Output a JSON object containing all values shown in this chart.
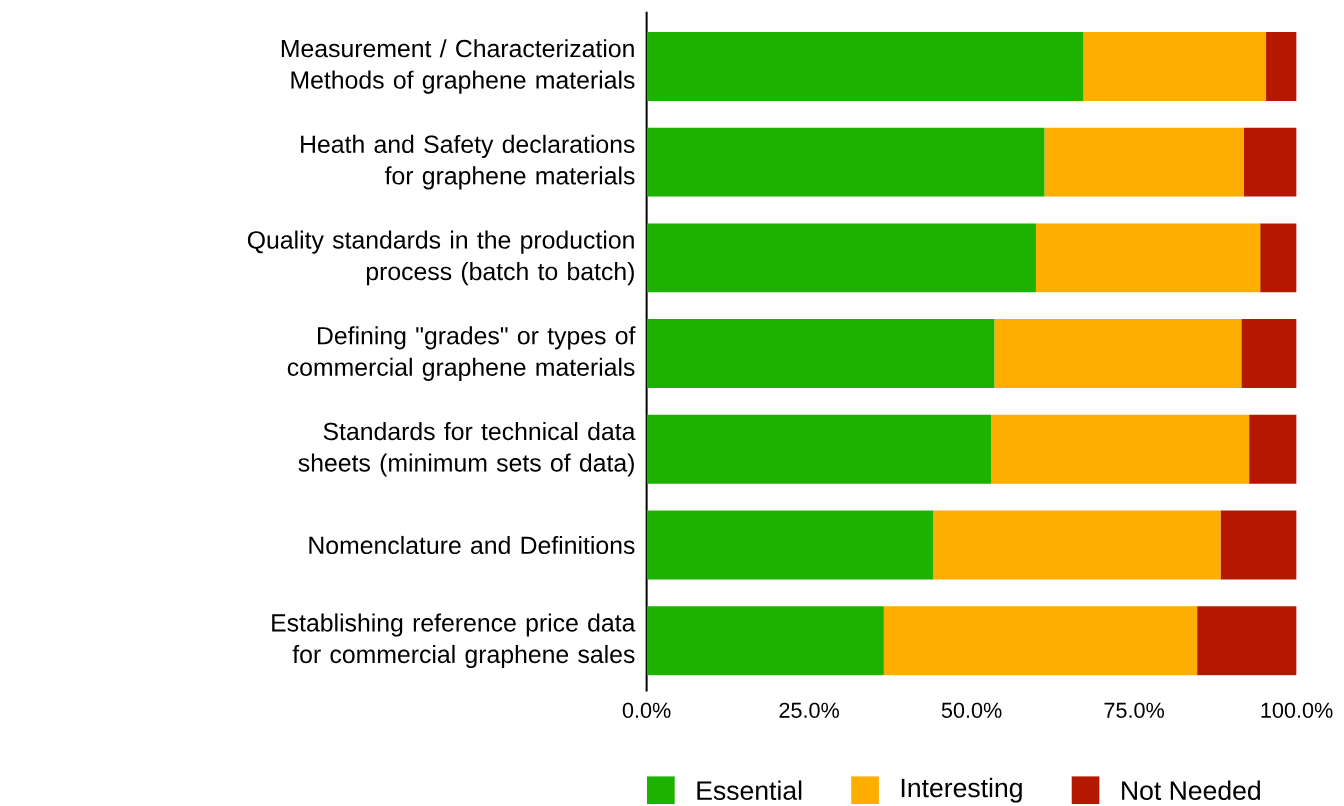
{
  "chart_data": {
    "type": "bar",
    "orientation": "horizontal",
    "stacked": true,
    "categories": [
      "Measurement / Characterization Methods of graphene materials",
      "Heath and Safety declarations for graphene materials",
      "Quality standards in the production process (batch to batch)",
      "Defining \"grades\" or types of commercial graphene materials",
      "Standards for technical data sheets (minimum sets of data)",
      "Nomenclature and Definitions",
      "Establishing reference price data for commercial graphene sales"
    ],
    "series": [
      {
        "name": "Essential",
        "color": "#1db100",
        "values": [
          67.2,
          61.2,
          59.9,
          53.5,
          53.0,
          44.1,
          36.5
        ]
      },
      {
        "name": "Interesting",
        "color": "#feae00",
        "values": [
          28.1,
          30.7,
          34.5,
          38.0,
          39.7,
          44.2,
          48.2
        ]
      },
      {
        "name": "Not Needed",
        "color": "#b51800",
        "values": [
          4.7,
          8.1,
          5.6,
          8.5,
          7.3,
          11.7,
          15.3
        ]
      }
    ],
    "xlim": [
      0,
      100
    ],
    "xticks": [
      {
        "value": 0,
        "label": "0.0%"
      },
      {
        "value": 25,
        "label": "25.0%"
      },
      {
        "value": 50,
        "label": "50.0%"
      },
      {
        "value": 75,
        "label": "75.0%"
      },
      {
        "value": 100,
        "label": "100.0%"
      }
    ],
    "legend": "bottom",
    "grid": false
  }
}
